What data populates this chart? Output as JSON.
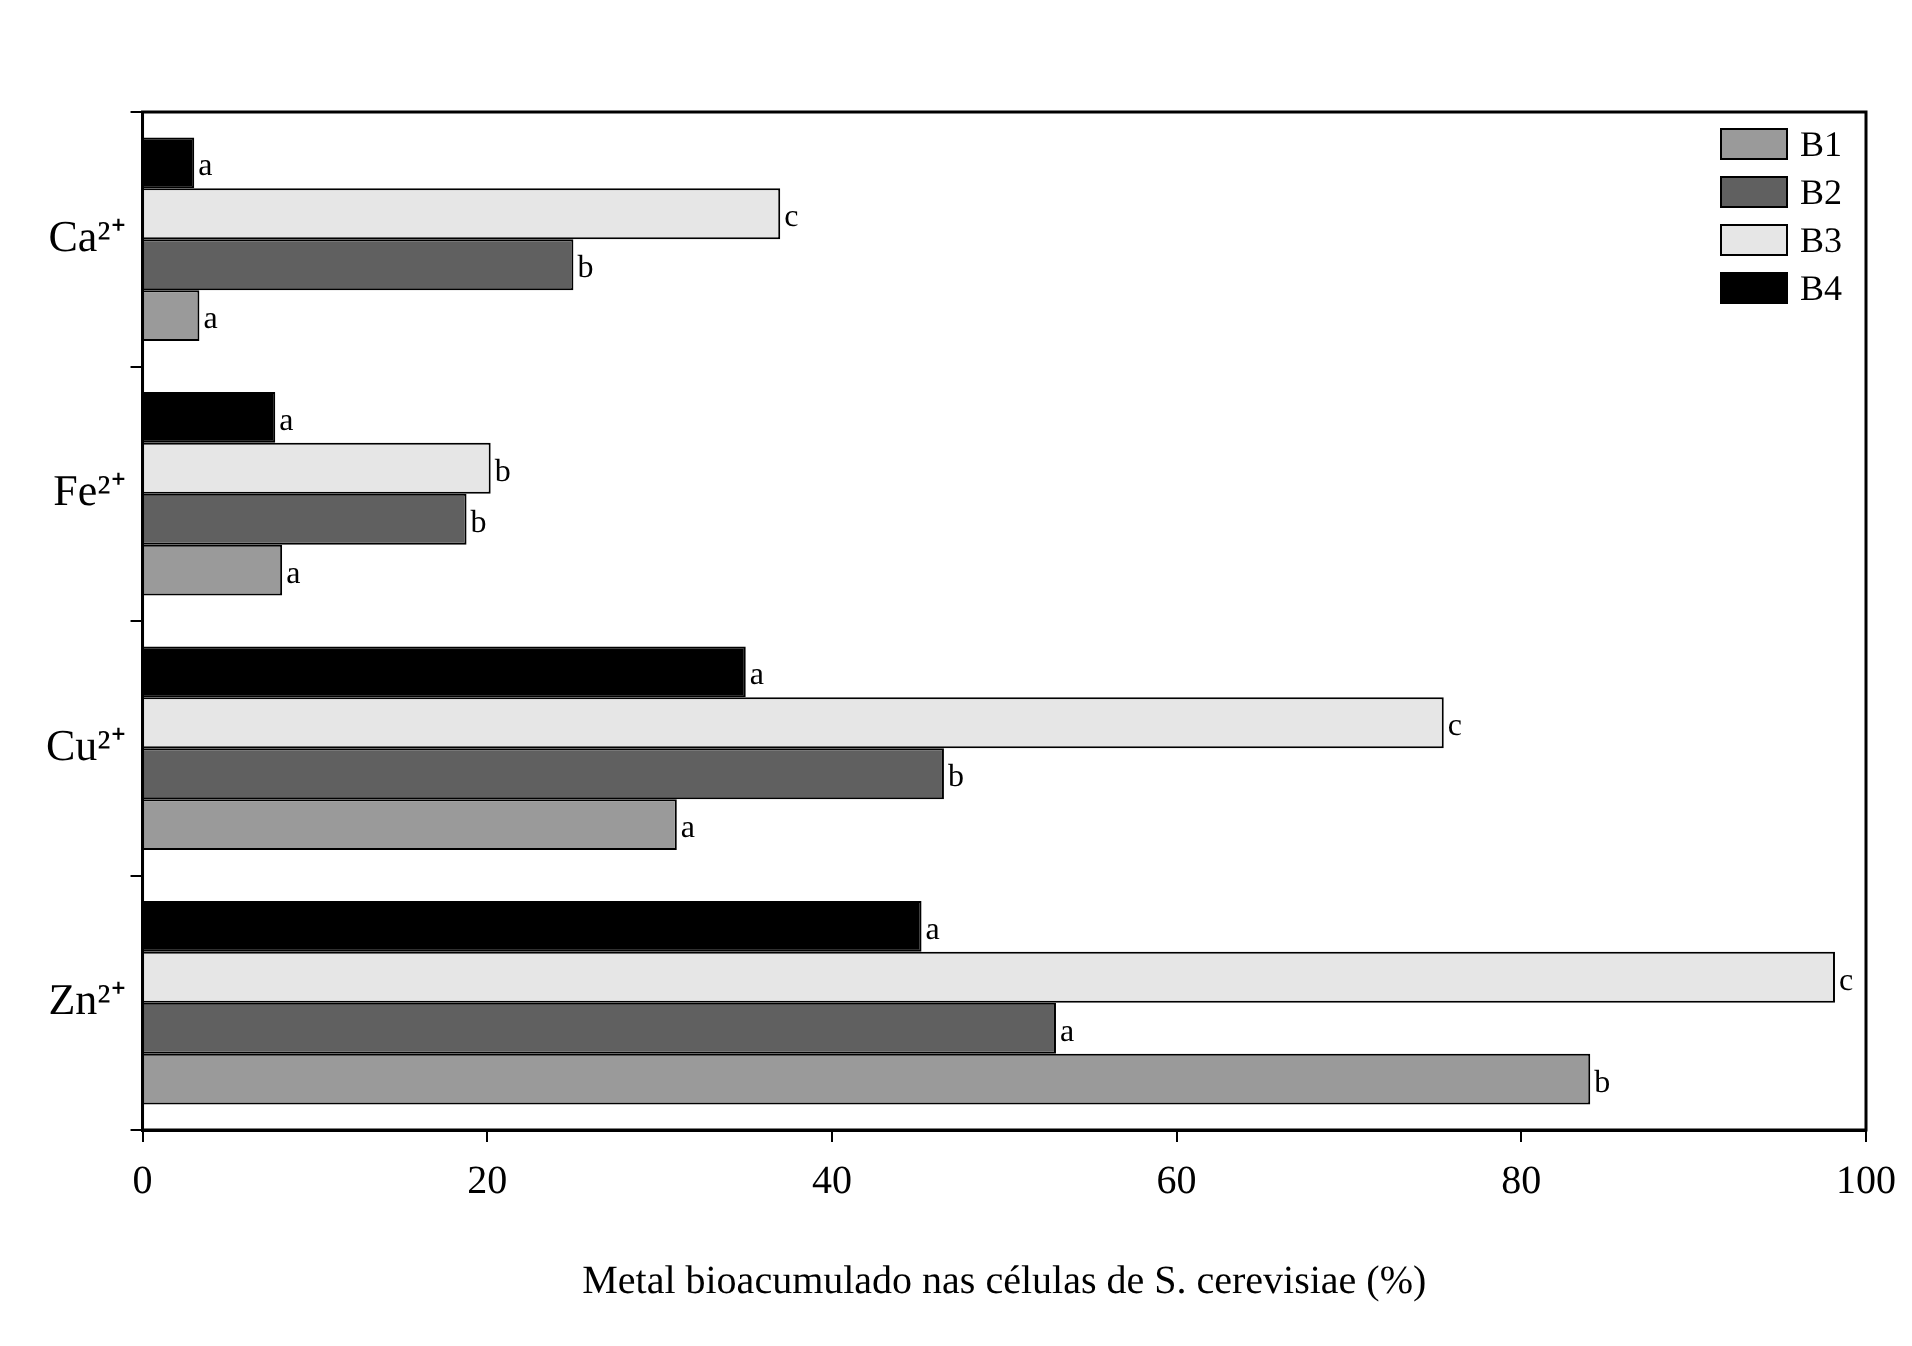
{
  "chart_data": {
    "type": "bar",
    "orientation": "horizontal",
    "xlabel": "Metal bioacumulado nas células de S. cerevisiae (%)",
    "categories": [
      "Ca²⁺",
      "Fe²⁺",
      "Cu²⁺",
      "Zn²⁺"
    ],
    "series": [
      {
        "name": "B1",
        "color": "#9a9a9a",
        "values": [
          3.3,
          8.1,
          31,
          84
        ],
        "value_labels": [
          "a",
          "a",
          "a",
          "b"
        ]
      },
      {
        "name": "B2",
        "color": "#606060",
        "values": [
          25,
          18.8,
          46.5,
          53
        ],
        "value_labels": [
          "b",
          "b",
          "b",
          "a"
        ]
      },
      {
        "name": "B3",
        "color": "#e6e6e6",
        "values": [
          37,
          20.2,
          75.5,
          98.2
        ],
        "value_labels": [
          "c",
          "b",
          "c",
          "c"
        ]
      },
      {
        "name": "B4",
        "color": "#000000",
        "values": [
          3,
          7.7,
          35,
          45.2
        ],
        "value_labels": [
          "a",
          "a",
          "a",
          "a"
        ]
      }
    ],
    "xlim": [
      0,
      100
    ],
    "xticks": [
      0,
      20,
      40,
      60,
      80,
      100
    ],
    "grid": false,
    "legend": "top right"
  }
}
